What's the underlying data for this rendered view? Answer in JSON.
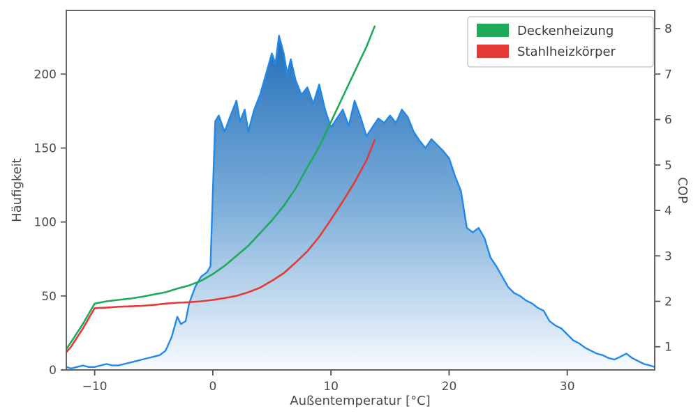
{
  "chart_data": {
    "type": "line",
    "title": "",
    "xlabel": "Außentemperatur [°C]",
    "ylabel_left": "Häufigkeit",
    "ylabel_right": "COP",
    "xlim": [
      -12.4,
      37.4
    ],
    "ylim_left": [
      0,
      243
    ],
    "ylim_right": [
      0.49,
      8.4
    ],
    "xticks": [
      -10,
      0,
      10,
      20,
      30
    ],
    "xtick_labels": [
      "−10",
      "0",
      "10",
      "20",
      "30"
    ],
    "yticks_left": [
      0,
      50,
      100,
      150,
      200
    ],
    "ytick_left_labels": [
      "0",
      "50",
      "100",
      "150",
      "200"
    ],
    "yticks_right": [
      1,
      2,
      3,
      4,
      5,
      6,
      7,
      8
    ],
    "ytick_right_labels": [
      "1",
      "2",
      "3",
      "4",
      "5",
      "6",
      "7",
      "8"
    ],
    "grid": false,
    "legend_position": "upper right",
    "colors": {
      "histogram_line": "#2289e8",
      "histogram_fill_top": "#1465b4",
      "histogram_fill_bottom": "#f7fbff",
      "deckenheizung": "#1fa95a",
      "stahlheizkoerper": "#e53935",
      "axis": "#545454",
      "text": "#4a4a4a",
      "legend_border": "#cccccc"
    },
    "histogram": {
      "name": "Häufigkeit",
      "axis": "left",
      "points": [
        [
          -12.4,
          2
        ],
        [
          -12,
          1
        ],
        [
          -11.5,
          2
        ],
        [
          -11,
          3
        ],
        [
          -10.5,
          2
        ],
        [
          -10,
          2
        ],
        [
          -9.5,
          3
        ],
        [
          -9,
          4
        ],
        [
          -8.5,
          3
        ],
        [
          -8,
          3
        ],
        [
          -7.5,
          4
        ],
        [
          -7,
          5
        ],
        [
          -6.5,
          6
        ],
        [
          -6,
          7
        ],
        [
          -5.5,
          8
        ],
        [
          -5,
          9
        ],
        [
          -4.5,
          10
        ],
        [
          -4,
          13
        ],
        [
          -3.5,
          22
        ],
        [
          -3,
          36
        ],
        [
          -2.7,
          31
        ],
        [
          -2.3,
          33
        ],
        [
          -2,
          45
        ],
        [
          -1.5,
          56
        ],
        [
          -1,
          63
        ],
        [
          -0.5,
          66
        ],
        [
          -0.2,
          70
        ],
        [
          0,
          120
        ],
        [
          0.2,
          168
        ],
        [
          0.5,
          172
        ],
        [
          1,
          161
        ],
        [
          1.5,
          172
        ],
        [
          2,
          182
        ],
        [
          2.3,
          168
        ],
        [
          2.7,
          176
        ],
        [
          3,
          161
        ],
        [
          3.5,
          176
        ],
        [
          4,
          186
        ],
        [
          4.5,
          200
        ],
        [
          5,
          214
        ],
        [
          5.3,
          207
        ],
        [
          5.6,
          226
        ],
        [
          6,
          214
        ],
        [
          6.3,
          200
        ],
        [
          6.6,
          210
        ],
        [
          7,
          196
        ],
        [
          7.5,
          186
        ],
        [
          8,
          191
        ],
        [
          8.5,
          180
        ],
        [
          9,
          193
        ],
        [
          9.5,
          176
        ],
        [
          10,
          164
        ],
        [
          10.5,
          170
        ],
        [
          11,
          176
        ],
        [
          11.5,
          165
        ],
        [
          12,
          182
        ],
        [
          12.5,
          171
        ],
        [
          13,
          158
        ],
        [
          13.5,
          164
        ],
        [
          14,
          170
        ],
        [
          14.5,
          167
        ],
        [
          15,
          172
        ],
        [
          15.5,
          167
        ],
        [
          16,
          176
        ],
        [
          16.5,
          171
        ],
        [
          17,
          161
        ],
        [
          17.5,
          155
        ],
        [
          18,
          150
        ],
        [
          18.5,
          156
        ],
        [
          19,
          152
        ],
        [
          19.5,
          148
        ],
        [
          20,
          143
        ],
        [
          20.5,
          131
        ],
        [
          21,
          121
        ],
        [
          21.5,
          96
        ],
        [
          22,
          93
        ],
        [
          22.5,
          96
        ],
        [
          23,
          89
        ],
        [
          23.5,
          76
        ],
        [
          24,
          70
        ],
        [
          24.5,
          63
        ],
        [
          25,
          56
        ],
        [
          25.5,
          52
        ],
        [
          26,
          50
        ],
        [
          26.5,
          47
        ],
        [
          27,
          45
        ],
        [
          27.5,
          42
        ],
        [
          28,
          40
        ],
        [
          28.5,
          33
        ],
        [
          29,
          30
        ],
        [
          29.5,
          28
        ],
        [
          30,
          24
        ],
        [
          30.5,
          20
        ],
        [
          31,
          18
        ],
        [
          31.5,
          15
        ],
        [
          32,
          13
        ],
        [
          32.5,
          11
        ],
        [
          33,
          10
        ],
        [
          33.5,
          8
        ],
        [
          34,
          7
        ],
        [
          34.5,
          9
        ],
        [
          35,
          11
        ],
        [
          35.5,
          8
        ],
        [
          36,
          6
        ],
        [
          36.5,
          4
        ],
        [
          37,
          3
        ],
        [
          37.4,
          2
        ]
      ]
    },
    "series": [
      {
        "name": "Deckenheizung",
        "axis": "right",
        "color": "#1fa95a",
        "points": [
          [
            -12.4,
            0.95
          ],
          [
            -12,
            1.1
          ],
          [
            -11,
            1.5
          ],
          [
            -10,
            1.95
          ],
          [
            -9,
            2.0
          ],
          [
            -8,
            2.03
          ],
          [
            -7,
            2.06
          ],
          [
            -6,
            2.1
          ],
          [
            -5,
            2.15
          ],
          [
            -4,
            2.2
          ],
          [
            -3,
            2.28
          ],
          [
            -2,
            2.35
          ],
          [
            -1,
            2.45
          ],
          [
            0,
            2.6
          ],
          [
            1,
            2.78
          ],
          [
            2,
            3.0
          ],
          [
            3,
            3.22
          ],
          [
            4,
            3.5
          ],
          [
            5,
            3.78
          ],
          [
            6,
            4.1
          ],
          [
            7,
            4.48
          ],
          [
            8,
            4.95
          ],
          [
            9,
            5.4
          ],
          [
            10,
            5.95
          ],
          [
            11,
            6.5
          ],
          [
            12,
            7.05
          ],
          [
            13,
            7.6
          ],
          [
            13.7,
            8.05
          ]
        ]
      },
      {
        "name": "Stahlheizkörper",
        "axis": "right",
        "color": "#e53935",
        "points": [
          [
            -12.4,
            0.88
          ],
          [
            -12,
            1.0
          ],
          [
            -11,
            1.4
          ],
          [
            -10,
            1.85
          ],
          [
            -9,
            1.86
          ],
          [
            -8,
            1.88
          ],
          [
            -7,
            1.89
          ],
          [
            -6,
            1.9
          ],
          [
            -5,
            1.92
          ],
          [
            -4,
            1.95
          ],
          [
            -3,
            1.97
          ],
          [
            -2,
            1.98
          ],
          [
            -1,
            2.0
          ],
          [
            0,
            2.03
          ],
          [
            1,
            2.07
          ],
          [
            2,
            2.12
          ],
          [
            3,
            2.2
          ],
          [
            4,
            2.3
          ],
          [
            5,
            2.45
          ],
          [
            6,
            2.62
          ],
          [
            7,
            2.85
          ],
          [
            8,
            3.1
          ],
          [
            9,
            3.42
          ],
          [
            10,
            3.8
          ],
          [
            11,
            4.2
          ],
          [
            12,
            4.62
          ],
          [
            13,
            5.1
          ],
          [
            13.7,
            5.55
          ]
        ]
      }
    ],
    "legend": {
      "entries": [
        "Deckenheizung",
        "Stahlheizkörper"
      ]
    }
  }
}
